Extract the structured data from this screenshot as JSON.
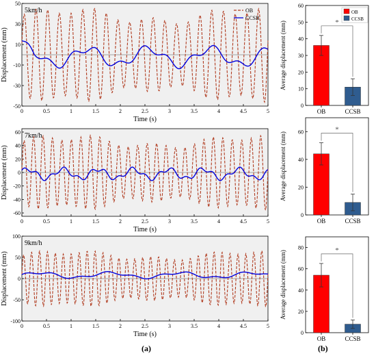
{
  "panel_labels": {
    "a": "(a)",
    "b": "(b)"
  },
  "chart_data": [
    {
      "type": "line",
      "panel": "a",
      "annotation": "5km/h",
      "xlabel": "Time (s)",
      "ylabel": "Displacement (mm)",
      "xlim": [
        0,
        5
      ],
      "ylim": [
        -50,
        50
      ],
      "xticks": [
        "0",
        "0.5",
        "1",
        "1.5",
        "2",
        "2.5",
        "3",
        "3.5",
        "4",
        "4.5",
        "5"
      ],
      "yticks": [
        "-50",
        "-30",
        "-10",
        "10",
        "30",
        "50"
      ],
      "legend": {
        "placement": "top-right",
        "entries": [
          "OB",
          "CCSB"
        ]
      },
      "background": "#f0f0f0",
      "series": [
        {
          "name": "OB",
          "style": "dashed",
          "color": "#b03a1e",
          "amplitude": 38,
          "frequency": 4.2,
          "phase": 0.3
        },
        {
          "name": "CCSB",
          "style": "solid",
          "color": "#0000dd",
          "amplitude": 8,
          "frequency": 0.8,
          "phase": 1.2,
          "offset": -2,
          "start_peak": 15
        }
      ],
      "reference_line": 0
    },
    {
      "type": "line",
      "panel": "a",
      "annotation": "7km/h",
      "xlabel": "Time (s)",
      "ylabel": "Displacement (mm)",
      "xlim": [
        0,
        5
      ],
      "ylim": [
        -65,
        65
      ],
      "xticks": [
        "0",
        "0.5",
        "1",
        "1.5",
        "2",
        "2.5",
        "3",
        "3.5",
        "4",
        "4.5",
        "5"
      ],
      "yticks": [
        "-60",
        "-40",
        "-20",
        "0",
        "20",
        "40",
        "60"
      ],
      "background": "#f0f0f0",
      "series": [
        {
          "name": "OB",
          "style": "dashed",
          "color": "#b03a1e",
          "amplitude": 46,
          "frequency": 5.2,
          "phase": 0.1
        },
        {
          "name": "CCSB",
          "style": "solid",
          "color": "#0000dd",
          "amplitude": 7,
          "frequency": 1.4,
          "phase": 0.5,
          "offset": -2
        }
      ],
      "reference_line": 0
    },
    {
      "type": "line",
      "panel": "a",
      "annotation": "9km/h",
      "xlabel": "Time (s)",
      "ylabel": "Displacement (mm)",
      "xlim": [
        0,
        5
      ],
      "ylim": [
        -100,
        100
      ],
      "xticks": [
        "0",
        "0.5",
        "1",
        "1.5",
        "2",
        "2.5",
        "3",
        "3.5",
        "4",
        "4.5",
        "5"
      ],
      "yticks": [
        "-100",
        "-50",
        "0",
        "50",
        "100"
      ],
      "background": "#f0f0f0",
      "series": [
        {
          "name": "OB",
          "style": "dashed",
          "color": "#b03a1e",
          "amplitude": 55,
          "frequency": 6.2,
          "phase": 0.2
        },
        {
          "name": "CCSB",
          "style": "solid",
          "color": "#0000dd",
          "amplitude": 6,
          "frequency": 0.7,
          "phase": 0.0,
          "offset": 8
        }
      ],
      "reference_line": 0
    },
    {
      "type": "bar",
      "panel": "b",
      "ylabel": "Average displacement (mm)",
      "categories": [
        "OB",
        "CCSB"
      ],
      "values": [
        36,
        11
      ],
      "errors": [
        6,
        5
      ],
      "colors": [
        "#ff0000",
        "#2f5c8f"
      ],
      "ylim": [
        0,
        60
      ],
      "yticks": [
        "0",
        "10",
        "20",
        "30",
        "40",
        "50",
        "60"
      ],
      "significance": "*",
      "legend": {
        "placement": "top-right",
        "entries": [
          "OB",
          "CCSB"
        ]
      }
    },
    {
      "type": "bar",
      "panel": "b",
      "ylabel": "Average displacement (mm)",
      "categories": [
        "OB",
        "CCSB"
      ],
      "values": [
        44,
        9
      ],
      "errors": [
        8,
        6
      ],
      "colors": [
        "#ff0000",
        "#2f5c8f"
      ],
      "ylim": [
        0,
        70
      ],
      "yticks": [
        "0",
        "20",
        "40",
        "60"
      ],
      "significance": "*"
    },
    {
      "type": "bar",
      "panel": "b",
      "ylabel": "Average displacement (mm)",
      "categories": [
        "OB",
        "CCSB"
      ],
      "values": [
        54,
        8
      ],
      "errors": [
        11,
        4
      ],
      "colors": [
        "#ff0000",
        "#2f5c8f"
      ],
      "ylim": [
        0,
        90
      ],
      "yticks": [
        "0",
        "20",
        "40",
        "60",
        "80"
      ],
      "significance": "*"
    }
  ]
}
